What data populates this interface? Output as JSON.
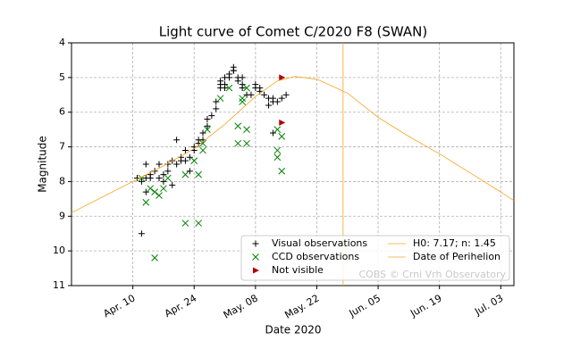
{
  "chart_data": {
    "type": "scatter",
    "title": "Light curve of Comet C/2020 F8 (SWAN)",
    "xlabel": "Date 2020",
    "ylabel": "Magnitude",
    "watermark": "COBS © Crni Vrh Observatory",
    "xlim": [
      "2020-03-27",
      "2020-07-06"
    ],
    "xticks": [
      {
        "value": "2020-04-10",
        "label": "Apr. 10"
      },
      {
        "value": "2020-04-24",
        "label": "Apr. 24"
      },
      {
        "value": "2020-05-08",
        "label": "May. 08"
      },
      {
        "value": "2020-05-22",
        "label": "May. 22"
      },
      {
        "value": "2020-06-05",
        "label": "Jun. 05"
      },
      {
        "value": "2020-06-19",
        "label": "Jun. 19"
      },
      {
        "value": "2020-07-03",
        "label": "Jul. 03"
      }
    ],
    "ylim": [
      4,
      11
    ],
    "y_inverted": true,
    "yticks": [
      4,
      5,
      6,
      7,
      8,
      9,
      10,
      11
    ],
    "grid": true,
    "legend": "lower right",
    "series": [
      {
        "name": "Visual observations",
        "color": "#000000",
        "marker": "plus",
        "x": [
          "2020-04-11",
          "2020-04-12",
          "2020-04-12",
          "2020-04-13",
          "2020-04-13",
          "2020-04-13",
          "2020-04-14",
          "2020-04-14",
          "2020-04-15",
          "2020-04-16",
          "2020-04-16",
          "2020-04-17",
          "2020-04-17",
          "2020-04-18",
          "2020-04-18",
          "2020-04-19",
          "2020-04-19",
          "2020-04-20",
          "2020-04-20",
          "2020-04-21",
          "2020-04-21",
          "2020-04-22",
          "2020-04-22",
          "2020-04-23",
          "2020-04-23",
          "2020-04-24",
          "2020-04-24",
          "2020-04-25",
          "2020-04-25",
          "2020-04-26",
          "2020-04-26",
          "2020-04-27",
          "2020-04-27",
          "2020-04-28",
          "2020-04-29",
          "2020-04-29",
          "2020-04-30",
          "2020-04-30",
          "2020-04-30",
          "2020-05-01",
          "2020-05-01",
          "2020-05-01",
          "2020-05-02",
          "2020-05-02",
          "2020-05-03",
          "2020-05-03",
          "2020-05-03",
          "2020-05-04",
          "2020-05-04",
          "2020-05-05",
          "2020-05-05",
          "2020-05-05",
          "2020-05-06",
          "2020-05-07",
          "2020-05-08",
          "2020-05-08",
          "2020-05-09",
          "2020-05-09",
          "2020-05-10",
          "2020-05-11",
          "2020-05-11",
          "2020-05-12",
          "2020-05-12",
          "2020-05-12",
          "2020-05-13",
          "2020-05-14",
          "2020-05-15"
        ],
        "values": [
          7.9,
          9.5,
          8.0,
          7.9,
          7.5,
          8.3,
          7.9,
          7.8,
          7.7,
          7.9,
          7.5,
          7.8,
          8.0,
          7.7,
          7.5,
          7.4,
          8.1,
          6.8,
          7.5,
          7.4,
          7.3,
          7.1,
          7.4,
          7.3,
          7.7,
          7.1,
          7.0,
          6.9,
          6.8,
          6.8,
          6.6,
          6.4,
          6.2,
          6.1,
          5.9,
          5.7,
          5.3,
          5.2,
          5.1,
          5.3,
          5.0,
          5.2,
          5.0,
          4.9,
          4.8,
          4.7,
          4.8,
          5.1,
          5.0,
          5.0,
          5.2,
          5.3,
          5.5,
          5.5,
          5.3,
          5.2,
          5.3,
          5.4,
          5.5,
          5.6,
          5.8,
          6.6,
          5.7,
          5.6,
          5.7,
          5.6,
          5.5
        ]
      },
      {
        "name": "CCD observations",
        "color": "#008000",
        "marker": "cross",
        "x": [
          "2020-04-12",
          "2020-04-13",
          "2020-04-14",
          "2020-04-15",
          "2020-04-15",
          "2020-04-16",
          "2020-04-17",
          "2020-04-18",
          "2020-04-22",
          "2020-04-22",
          "2020-04-24",
          "2020-04-25",
          "2020-04-25",
          "2020-04-26",
          "2020-04-26",
          "2020-04-27",
          "2020-04-30",
          "2020-05-02",
          "2020-05-04",
          "2020-05-04",
          "2020-05-05",
          "2020-05-05",
          "2020-05-06",
          "2020-05-06",
          "2020-05-06",
          "2020-05-13",
          "2020-05-13",
          "2020-05-13",
          "2020-05-14",
          "2020-05-14"
        ],
        "values": [
          7.9,
          8.6,
          8.2,
          8.3,
          10.2,
          8.4,
          8.2,
          7.9,
          9.2,
          7.8,
          7.4,
          9.2,
          7.8,
          7.1,
          6.9,
          6.5,
          5.6,
          5.3,
          6.4,
          6.9,
          5.7,
          5.6,
          6.5,
          6.9,
          5.3,
          6.5,
          7.1,
          7.3,
          6.7,
          7.7
        ]
      },
      {
        "name": "Not visible",
        "color": "#b20000",
        "marker": "triangle-right",
        "x": [
          "2020-05-14",
          "2020-05-14"
        ],
        "values": [
          5.0,
          6.3
        ]
      },
      {
        "name": "H0: 7.17; n: 1.45",
        "color": "#f5a623",
        "marker": "line",
        "x": [
          "2020-03-27",
          "2020-04-03",
          "2020-04-10",
          "2020-04-17",
          "2020-04-24",
          "2020-05-01",
          "2020-05-08",
          "2020-05-13",
          "2020-05-17",
          "2020-05-22",
          "2020-05-29",
          "2020-06-05",
          "2020-06-12",
          "2020-06-19",
          "2020-06-26",
          "2020-07-03",
          "2020-07-06"
        ],
        "values": [
          8.9,
          8.45,
          8.0,
          7.55,
          7.05,
          6.35,
          5.55,
          5.1,
          4.97,
          5.05,
          5.45,
          6.15,
          6.7,
          7.2,
          7.75,
          8.3,
          8.55
        ]
      },
      {
        "name": "Date of Perihelion",
        "color": "#f5a623",
        "marker": "vline",
        "x": [
          "2020-05-28"
        ]
      }
    ]
  }
}
